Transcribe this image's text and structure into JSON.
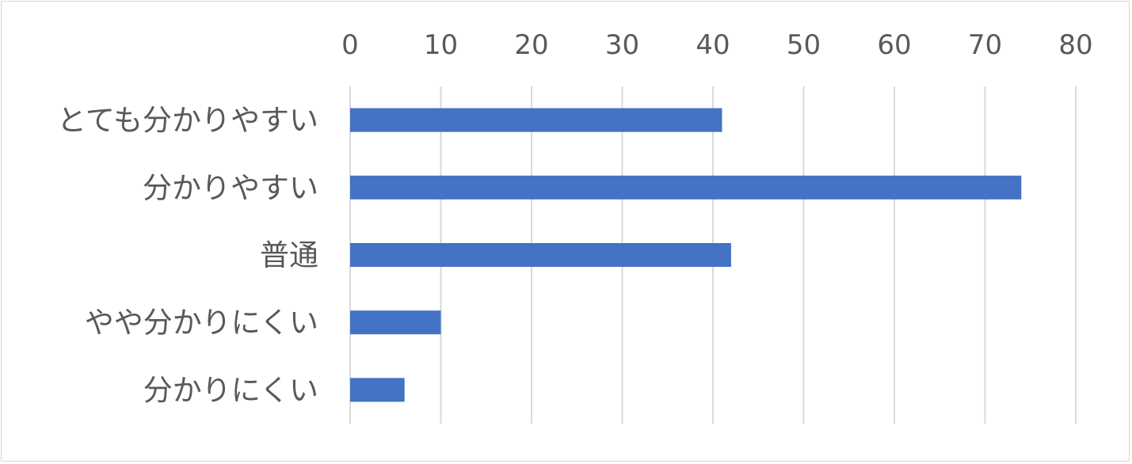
{
  "chart_data": {
    "type": "bar",
    "orientation": "horizontal",
    "categories": [
      "とても分かりやすい",
      "分かりやすい",
      "普通",
      "やや分かりにくい",
      "分かりにくい"
    ],
    "values": [
      41,
      74,
      42,
      10,
      6
    ],
    "xlim": [
      0,
      80
    ],
    "x_ticks": [
      "0",
      "10",
      "20",
      "30",
      "40",
      "50",
      "60",
      "70",
      "80"
    ],
    "x_tick_values": [
      0,
      10,
      20,
      30,
      40,
      50,
      60,
      70,
      80
    ],
    "x_axis_position": "top",
    "grid": true,
    "legend": "none",
    "title": "",
    "xlabel": "",
    "ylabel": "",
    "bar_color": "#4472c4",
    "grid_color": "#d9d9d9",
    "text_color": "#595959"
  }
}
